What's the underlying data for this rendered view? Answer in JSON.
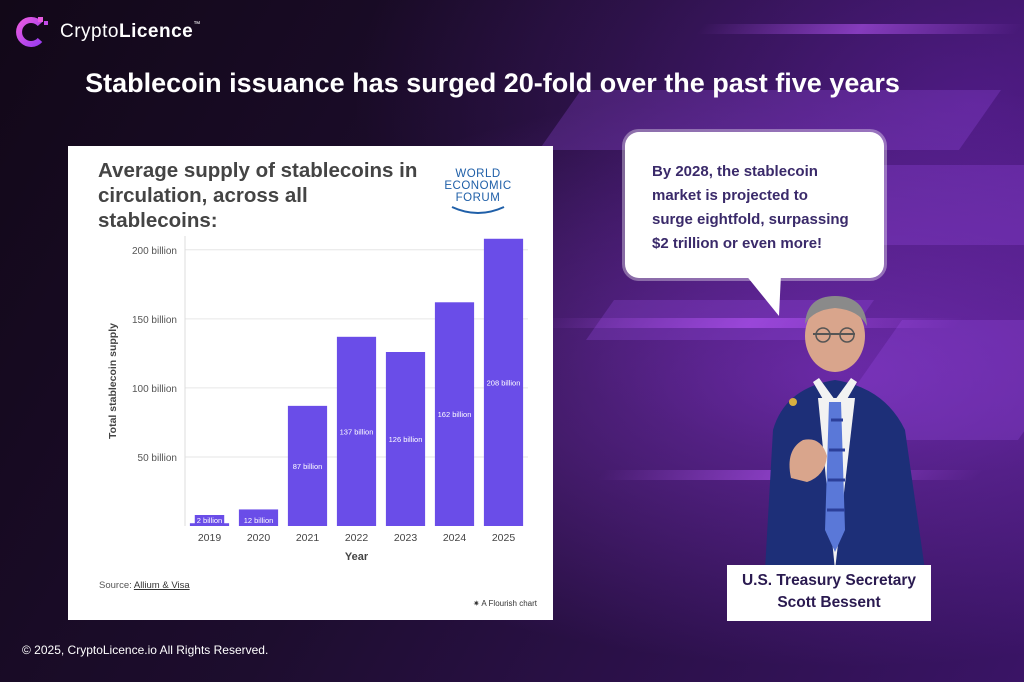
{
  "brand": {
    "name_regular": "Crypto",
    "name_bold": "Licence",
    "tm": "™"
  },
  "headline": "Stablecoin issuance has surged 20-fold over the past five years",
  "card": {
    "logo_lines": [
      "WORLD",
      "ECONOMIC",
      "FORUM"
    ],
    "source_prefix": "Source: ",
    "source_link": "Allium & Visa",
    "flourish_credit": "A Flourish chart"
  },
  "chart_data": {
    "type": "bar",
    "title": "Average supply of stablecoins in circulation, across all stablecoins:",
    "xlabel": "Year",
    "ylabel": "Total stablecoin supply",
    "categories": [
      "2019",
      "2020",
      "2021",
      "2022",
      "2023",
      "2024",
      "2025"
    ],
    "values": [
      2,
      12,
      87,
      137,
      126,
      162,
      208
    ],
    "data_labels": [
      "2 billion",
      "12 billion",
      "87 billion",
      "137 billion",
      "126 billion",
      "162 billion",
      "208 billion"
    ],
    "yticks": [
      50,
      100,
      150,
      200
    ],
    "ytick_labels": [
      "50 billion",
      "100 billion",
      "150 billion",
      "200 billion"
    ],
    "ylim": [
      0,
      210
    ],
    "grid": true,
    "bar_color": "#6a4de8"
  },
  "bubble": {
    "lines": [
      "By 2028, the stablecoin",
      "market is projected to",
      "surge eightfold, surpassing",
      "$2 trillion  or even more!"
    ]
  },
  "speaker": {
    "title": "U.S. Treasury Secretary",
    "name": "Scott Bessent"
  },
  "footer": {
    "copyright": "© 2025, CryptoLicence.io All Rights Reserved."
  }
}
